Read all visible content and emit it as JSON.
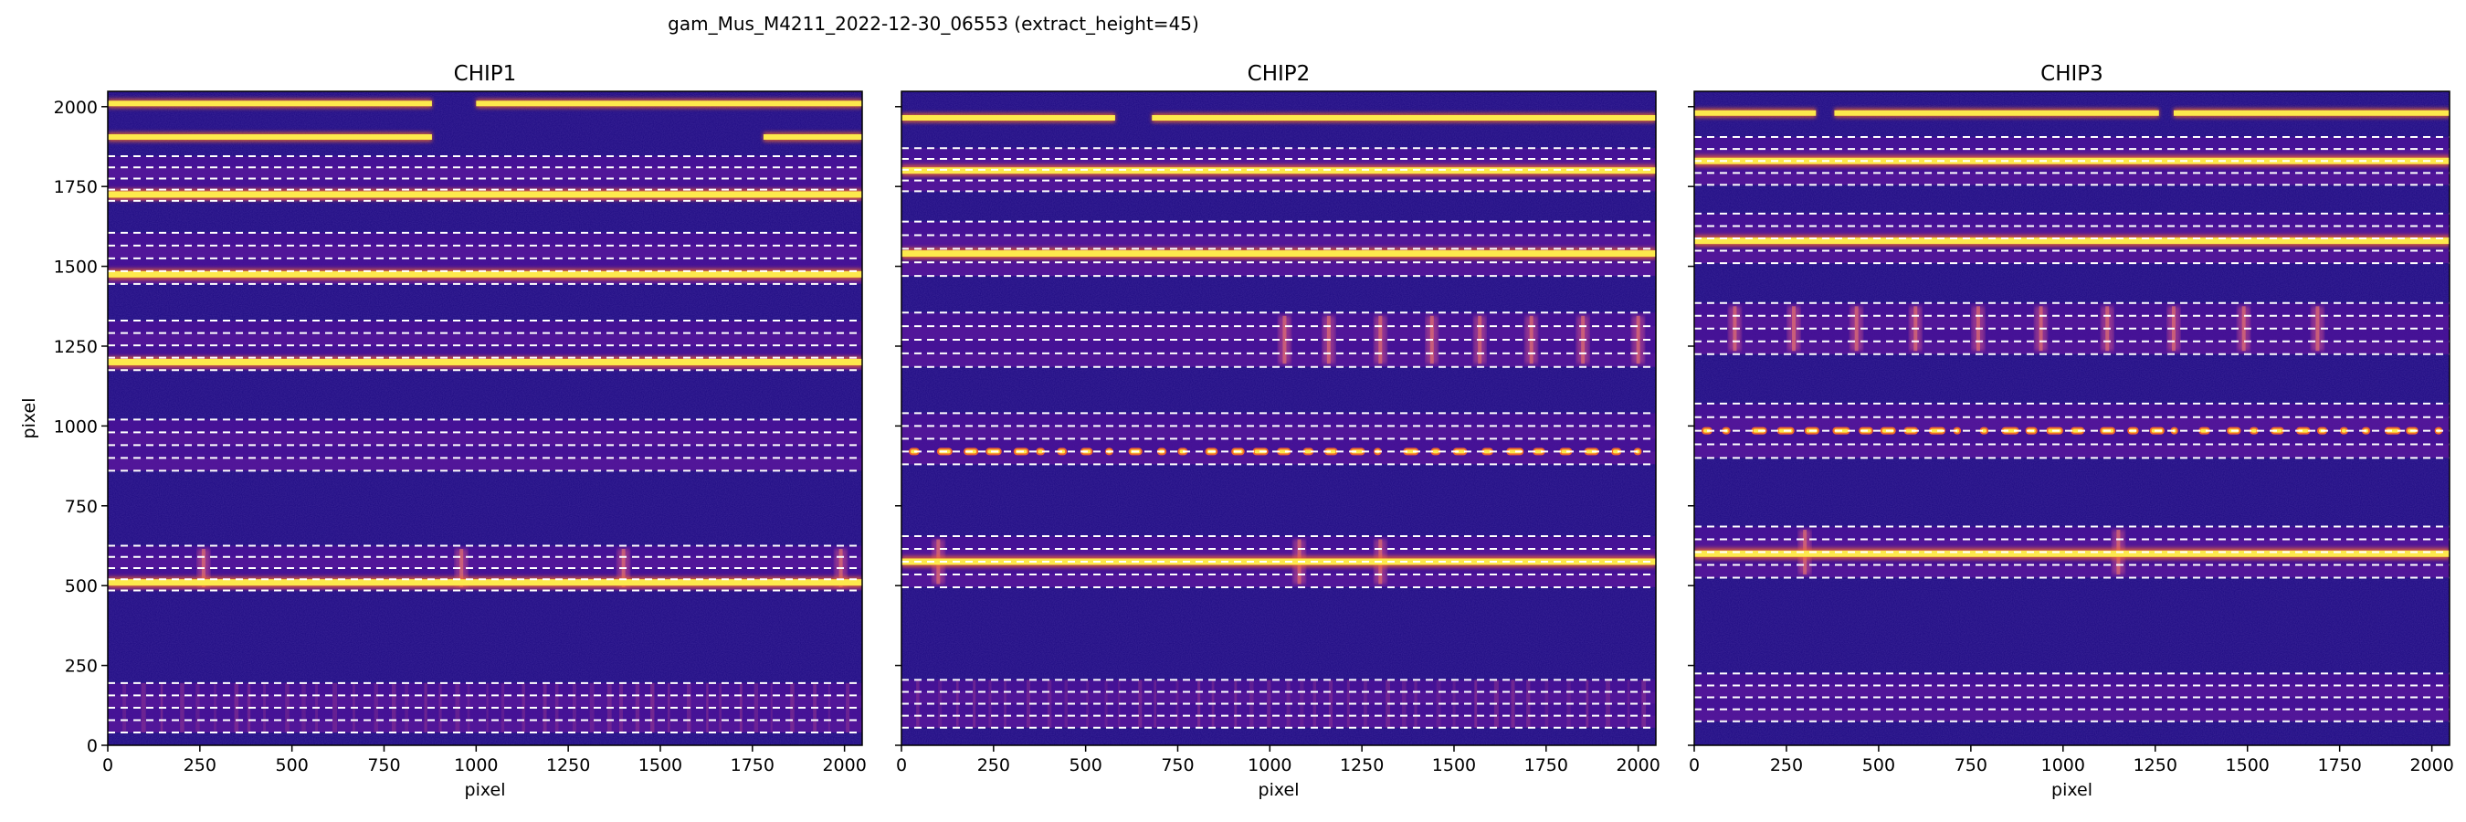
{
  "suptitle": "gam_Mus_M4211_2022-12-30_06553  (extract_height=45)",
  "colors": {
    "background": "#1d0a82",
    "background_dark": "#150868",
    "continuum": "#4a1298",
    "inter_order": "#5e1a9c",
    "trace_outer": "#f26a2a",
    "trace_core": "#fde94c",
    "emission": "#c9508a",
    "dashed_line": "#ffffff"
  },
  "chart_data": [
    {
      "type": "heatmap",
      "title": "CHIP1",
      "xlabel": "pixel",
      "ylabel": "pixel",
      "xlim": [
        0,
        2048
      ],
      "ylim": [
        0,
        2048
      ],
      "xticks": [
        0,
        250,
        500,
        750,
        1000,
        1250,
        1500,
        1750,
        2000
      ],
      "yticks": [
        0,
        250,
        500,
        750,
        1000,
        1250,
        1500,
        1750,
        2000
      ],
      "show_yticklabels": true,
      "colormap": "plasma",
      "orders": [
        {
          "lower": 40,
          "upper": 195,
          "trace": 105,
          "bright": false,
          "fringes": true
        },
        {
          "lower": 485,
          "upper": 625,
          "trace": 510,
          "bright": true,
          "lines": [
            260,
            960,
            1400,
            1990
          ]
        },
        {
          "lower": 860,
          "upper": 1020,
          "trace": 940,
          "bright": false
        },
        {
          "lower": 1175,
          "upper": 1330,
          "trace": 1200,
          "bright": true
        },
        {
          "lower": 1445,
          "upper": 1605,
          "trace": 1475,
          "bright": true
        },
        {
          "lower": 1705,
          "upper": 1845,
          "trace": 1725,
          "bright": true
        }
      ],
      "top_traces": [
        {
          "y": 2010,
          "gaps": [
            [
              880,
              1000
            ]
          ]
        },
        {
          "y": 1905,
          "gaps": [
            [
              880,
              1780
            ]
          ]
        }
      ]
    },
    {
      "type": "heatmap",
      "title": "CHIP2",
      "xlabel": "pixel",
      "ylabel": "",
      "xlim": [
        0,
        2048
      ],
      "ylim": [
        0,
        2048
      ],
      "xticks": [
        0,
        250,
        500,
        750,
        1000,
        1250,
        1500,
        1750,
        2000
      ],
      "yticks": [
        0,
        250,
        500,
        750,
        1000,
        1250,
        1500,
        1750,
        2000
      ],
      "show_yticklabels": false,
      "colormap": "plasma",
      "orders": [
        {
          "lower": 55,
          "upper": 205,
          "trace": 105,
          "bright": false,
          "fringes": true
        },
        {
          "lower": 495,
          "upper": 655,
          "trace": 575,
          "bright": true,
          "lines": [
            100,
            1080,
            1300
          ]
        },
        {
          "lower": 880,
          "upper": 1040,
          "trace": 920,
          "bright": true,
          "dotted": true
        },
        {
          "lower": 1185,
          "upper": 1355,
          "trace": 1270,
          "bright": false,
          "lines": [
            1040,
            1160,
            1300,
            1440,
            1570,
            1710,
            1850,
            2000
          ]
        },
        {
          "lower": 1470,
          "upper": 1640,
          "trace": 1540,
          "bright": true
        },
        {
          "lower": 1735,
          "upper": 1870,
          "trace": 1800,
          "bright": true
        }
      ],
      "top_traces": [
        {
          "y": 1965,
          "gaps": [
            [
              580,
              680
            ]
          ]
        }
      ]
    },
    {
      "type": "heatmap",
      "title": "CHIP3",
      "xlabel": "pixel",
      "ylabel": "",
      "xlim": [
        0,
        2048
      ],
      "ylim": [
        0,
        2048
      ],
      "xticks": [
        0,
        250,
        500,
        750,
        1000,
        1250,
        1500,
        1750,
        2000
      ],
      "yticks": [
        0,
        250,
        500,
        750,
        1000,
        1250,
        1500,
        1750,
        2000
      ],
      "show_yticklabels": false,
      "colormap": "plasma",
      "orders": [
        {
          "lower": 75,
          "upper": 225,
          "trace": 140,
          "bright": false
        },
        {
          "lower": 525,
          "upper": 685,
          "trace": 600,
          "bright": true,
          "lines": [
            300,
            1150
          ]
        },
        {
          "lower": 900,
          "upper": 1070,
          "trace": 985,
          "bright": true,
          "dotted": true
        },
        {
          "lower": 1225,
          "upper": 1385,
          "trace": 1300,
          "bright": false,
          "lines": [
            110,
            270,
            440,
            600,
            770,
            940,
            1120,
            1300,
            1490,
            1690
          ]
        },
        {
          "lower": 1510,
          "upper": 1665,
          "trace": 1580,
          "bright": true
        },
        {
          "lower": 1755,
          "upper": 1905,
          "trace": 1830,
          "bright": true
        }
      ],
      "top_traces": [
        {
          "y": 1980,
          "gaps": [
            [
              330,
              380
            ],
            [
              1260,
              1300
            ]
          ]
        }
      ]
    }
  ]
}
